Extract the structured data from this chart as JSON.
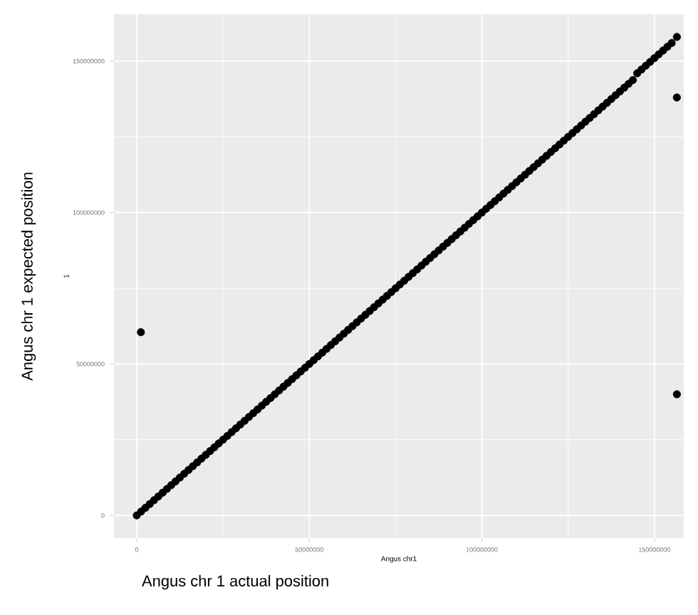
{
  "chart_data": {
    "type": "scatter",
    "xlabel": "Angus chr1",
    "ylabel": "1",
    "annotations": [
      "Angus chr 1 expected position",
      "Angus chr 1 actual position"
    ],
    "xlim": [
      -6600000,
      158500000
    ],
    "ylim": [
      -7500000,
      165500000
    ],
    "xticks": [
      0,
      50000000,
      100000000,
      150000000
    ],
    "yticks": [
      0,
      50000000,
      100000000,
      150000000
    ],
    "grid": true,
    "marker": "circle",
    "color": "#000000",
    "x": [
      0,
      1250000,
      2500000,
      3750000,
      5000000,
      6250000,
      7500000,
      8750000,
      10000000,
      11250000,
      12500000,
      13750000,
      15000000,
      16250000,
      17500000,
      18750000,
      20000000,
      21250000,
      22500000,
      23750000,
      25000000,
      26250000,
      27500000,
      28750000,
      30000000,
      31250000,
      32500000,
      33750000,
      35000000,
      36250000,
      37500000,
      38750000,
      40000000,
      41250000,
      42500000,
      43750000,
      45000000,
      46250000,
      47500000,
      48750000,
      50000000,
      51250000,
      52500000,
      53750000,
      55000000,
      56250000,
      57500000,
      58750000,
      60000000,
      61250000,
      62500000,
      63750000,
      65000000,
      66250000,
      67500000,
      68750000,
      70000000,
      71250000,
      72500000,
      73750000,
      75000000,
      76250000,
      77500000,
      78750000,
      80000000,
      81250000,
      82500000,
      83750000,
      85000000,
      86250000,
      87500000,
      88750000,
      90000000,
      91250000,
      92500000,
      93750000,
      95000000,
      96250000,
      97500000,
      98750000,
      100000000,
      101250000,
      102500000,
      103750000,
      105000000,
      106250000,
      107500000,
      108750000,
      110000000,
      111250000,
      112500000,
      113750000,
      115000000,
      116250000,
      117500000,
      118750000,
      120000000,
      121250000,
      122500000,
      123750000,
      125000000,
      126250000,
      127500000,
      128750000,
      130000000,
      131250000,
      132500000,
      133750000,
      135000000,
      136250000,
      137500000,
      138750000,
      140000000,
      141250000,
      142500000,
      143750000,
      145000000,
      146250000,
      147500000,
      148750000,
      150000000,
      151250000,
      152500000,
      153750000,
      155000000,
      156500000,
      1200000,
      156500000,
      156500000
    ],
    "values": [
      0,
      1250000,
      2500000,
      3750000,
      5000000,
      6250000,
      7500000,
      8750000,
      10000000,
      11250000,
      12500000,
      13750000,
      15000000,
      16250000,
      17500000,
      18750000,
      20000000,
      21250000,
      22500000,
      23750000,
      25000000,
      26250000,
      27500000,
      28750000,
      30000000,
      31250000,
      32500000,
      33750000,
      35000000,
      36250000,
      37500000,
      38750000,
      40000000,
      41250000,
      42500000,
      43750000,
      45000000,
      46250000,
      47500000,
      48750000,
      50000000,
      51250000,
      52500000,
      53750000,
      55000000,
      56250000,
      57500000,
      58750000,
      60000000,
      61250000,
      62500000,
      63750000,
      65000000,
      66250000,
      67500000,
      68750000,
      70000000,
      71250000,
      72500000,
      73750000,
      75000000,
      76250000,
      77500000,
      78750000,
      80000000,
      81250000,
      82500000,
      83750000,
      85000000,
      86250000,
      87500000,
      88750000,
      90000000,
      91250000,
      92500000,
      93750000,
      95000000,
      96250000,
      97500000,
      98750000,
      100000000,
      101250000,
      102500000,
      103750000,
      105000000,
      106250000,
      107500000,
      108750000,
      110000000,
      111250000,
      112500000,
      113750000,
      115000000,
      116250000,
      117500000,
      118750000,
      120000000,
      121250000,
      122500000,
      123750000,
      125000000,
      126250000,
      127500000,
      128750000,
      130000000,
      131250000,
      132500000,
      133750000,
      135000000,
      136250000,
      137500000,
      138750000,
      140000000,
      141250000,
      142500000,
      143750000,
      146000000,
      147250000,
      148500000,
      149750000,
      151000000,
      152250000,
      153500000,
      154750000,
      156000000,
      158000000,
      60500000,
      138000000,
      40000000
    ]
  }
}
